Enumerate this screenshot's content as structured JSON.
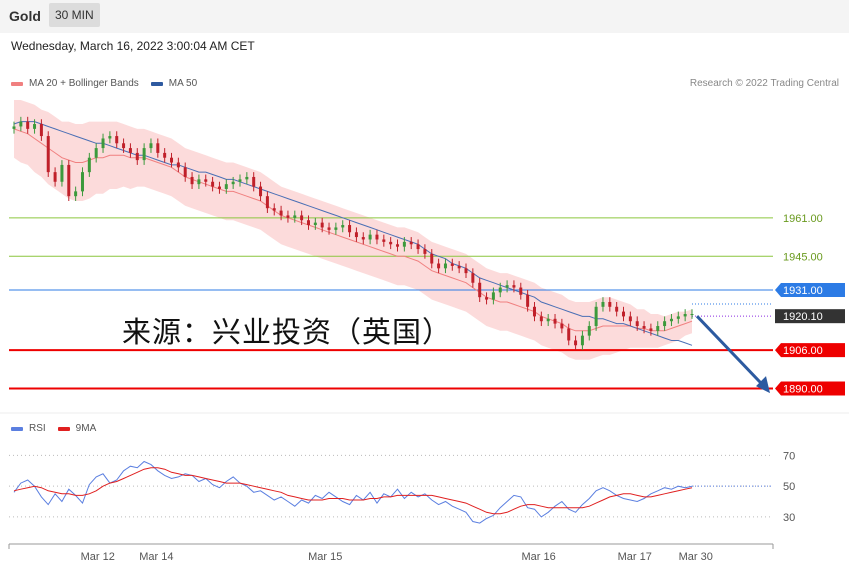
{
  "header": {
    "title": "Gold",
    "timeframe": "30 MIN"
  },
  "subheader": {
    "date": "Wednesday, March 16, 2022 3:00:04 AM CET"
  },
  "legend_main": [
    {
      "label": "MA 20 + Bollinger Bands",
      "color": "#f08080"
    },
    {
      "label": "MA 50",
      "color": "#2e5aa0"
    }
  ],
  "legend_rsi": [
    {
      "label": "RSI",
      "color": "#5b7fe0"
    },
    {
      "label": "9MA",
      "color": "#e02020"
    }
  ],
  "credit": "Research © 2022 Trading Central",
  "watermark": "来源：兴业投资（英国）",
  "chart_data": {
    "type": "candlestick",
    "ylim": [
      1879,
      2010
    ],
    "levels": [
      {
        "value": 1961.0,
        "label": "1961.00",
        "color": "#8cc63f",
        "style": "line-text"
      },
      {
        "value": 1945.0,
        "label": "1945.00",
        "color": "#8cc63f",
        "style": "line-text"
      },
      {
        "value": 1931.0,
        "label": "1931.00",
        "color": "#2c7be5",
        "style": "box"
      },
      {
        "value": 1920.1,
        "label": "1920.10",
        "color": "#333333",
        "style": "box-current"
      },
      {
        "value": 1906.0,
        "label": "1906.00",
        "color": "#ee0000",
        "style": "box"
      },
      {
        "value": 1890.0,
        "label": "1890.00",
        "color": "#ee0000",
        "style": "box"
      }
    ],
    "close": [
      1999,
      2001,
      1998,
      2000,
      1995,
      1980,
      1976,
      1983,
      1970,
      1972,
      1980,
      1986,
      1990,
      1994,
      1995,
      1992,
      1990,
      1988,
      1985,
      1990,
      1992,
      1988,
      1986,
      1984,
      1982,
      1978,
      1975,
      1977,
      1976,
      1974,
      1973,
      1975,
      1976,
      1977,
      1978,
      1974,
      1970,
      1965,
      1964,
      1962,
      1961,
      1962,
      1960,
      1958,
      1959,
      1957,
      1956,
      1957,
      1958,
      1955,
      1953,
      1952,
      1954,
      1952,
      1951,
      1950,
      1949,
      1951,
      1950,
      1948,
      1946,
      1942,
      1940,
      1942,
      1941,
      1940,
      1938,
      1934,
      1928,
      1927,
      1930,
      1932,
      1933,
      1932,
      1929,
      1924,
      1920,
      1918,
      1919,
      1917,
      1915,
      1910,
      1908,
      1912,
      1916,
      1924,
      1926,
      1924,
      1922,
      1920,
      1918,
      1916,
      1915,
      1914,
      1916,
      1918,
      1919,
      1920,
      1921,
      1921
    ],
    "ma20": [
      1998,
      1997,
      1996,
      1994,
      1992,
      1990,
      1988,
      1986,
      1985,
      1984,
      1984,
      1985,
      1986,
      1986,
      1987,
      1987,
      1987,
      1986,
      1986,
      1986,
      1985,
      1984,
      1983,
      1982,
      1980,
      1978,
      1977,
      1976,
      1975,
      1974,
      1973,
      1972,
      1972,
      1971,
      1970,
      1969,
      1968,
      1966,
      1964,
      1962,
      1961,
      1960,
      1959,
      1958,
      1957,
      1956,
      1955,
      1954,
      1953,
      1952,
      1951,
      1950,
      1949,
      1948,
      1947,
      1946,
      1945,
      1945,
      1944,
      1943,
      1941,
      1939,
      1938,
      1937,
      1936,
      1935,
      1934,
      1932,
      1930,
      1928,
      1927,
      1926,
      1926,
      1925,
      1924,
      1923,
      1922,
      1920,
      1919,
      1918,
      1917,
      1915,
      1914,
      1914,
      1914,
      1915,
      1916,
      1916,
      1916,
      1916,
      1916,
      1915,
      1915,
      1914,
      1914,
      1914,
      1915,
      1916,
      1917,
      1918
    ],
    "ma50": [
      2000,
      2001,
      2001,
      2001,
      2000,
      1999,
      1998,
      1997,
      1996,
      1995,
      1994,
      1993,
      1992,
      1992,
      1991,
      1990,
      1989,
      1988,
      1987,
      1987,
      1986,
      1985,
      1984,
      1983,
      1983,
      1982,
      1981,
      1980,
      1980,
      1979,
      1978,
      1977,
      1977,
      1976,
      1975,
      1974,
      1973,
      1972,
      1971,
      1970,
      1969,
      1968,
      1967,
      1966,
      1965,
      1964,
      1963,
      1962,
      1961,
      1960,
      1959,
      1958,
      1957,
      1956,
      1955,
      1954,
      1953,
      1952,
      1951,
      1950,
      1948,
      1946,
      1945,
      1944,
      1942,
      1941,
      1940,
      1938,
      1936,
      1935,
      1934,
      1933,
      1932,
      1931,
      1930,
      1929,
      1928,
      1926,
      1925,
      1924,
      1923,
      1922,
      1921,
      1920,
      1920,
      1919,
      1919,
      1918,
      1917,
      1917,
      1916,
      1915,
      1914,
      1913,
      1912,
      1911,
      1910,
      1910,
      1909,
      1908
    ],
    "bb_upper_offset": [
      12,
      13,
      13,
      14,
      14,
      15,
      15,
      15,
      16,
      16,
      16,
      16,
      15,
      15,
      14,
      14,
      13,
      13,
      12,
      12,
      12,
      12,
      12,
      12,
      12,
      12,
      12,
      12,
      12,
      12,
      12,
      12,
      12,
      12,
      12,
      12,
      12,
      12,
      12,
      12,
      12,
      12,
      12,
      12,
      12,
      12,
      12,
      12,
      12,
      12,
      12,
      12,
      12,
      12,
      12,
      12,
      12,
      12,
      12,
      12,
      12,
      12,
      12,
      12,
      12,
      12,
      12,
      12,
      12,
      12,
      12,
      12,
      12,
      12,
      12,
      12,
      12,
      12,
      12,
      12,
      12,
      12,
      12,
      12,
      12,
      12,
      12,
      12,
      11,
      10,
      9,
      8,
      8,
      7,
      7,
      6,
      6,
      6,
      5,
      5
    ],
    "rsi": {
      "ylim": [
        15,
        80
      ],
      "ticks": [
        70,
        50,
        30
      ],
      "rsi_values": [
        46,
        52,
        54,
        50,
        43,
        38,
        45,
        40,
        48,
        44,
        39,
        51,
        56,
        58,
        52,
        54,
        60,
        63,
        62,
        66,
        64,
        60,
        57,
        55,
        56,
        58,
        57,
        53,
        55,
        51,
        49,
        53,
        56,
        52,
        50,
        46,
        47,
        44,
        41,
        43,
        40,
        37,
        41,
        39,
        44,
        42,
        46,
        43,
        40,
        38,
        44,
        41,
        46,
        39,
        45,
        43,
        48,
        42,
        46,
        43,
        45,
        41,
        38,
        40,
        37,
        35,
        33,
        27,
        26,
        29,
        31,
        36,
        40,
        44,
        43,
        36,
        35,
        30,
        33,
        37,
        40,
        35,
        33,
        38,
        42,
        47,
        49,
        47,
        44,
        42,
        41,
        40,
        42,
        45,
        47,
        49,
        48,
        50,
        49,
        50
      ],
      "ma_values": [
        47,
        48,
        49,
        50,
        49,
        47,
        46,
        45,
        45,
        44,
        44,
        45,
        47,
        50,
        52,
        53,
        55,
        57,
        59,
        61,
        62,
        62,
        61,
        59,
        58,
        57,
        57,
        56,
        55,
        54,
        53,
        52,
        52,
        52,
        51,
        50,
        49,
        48,
        47,
        46,
        44,
        43,
        42,
        41,
        41,
        41,
        42,
        42,
        42,
        41,
        41,
        41,
        42,
        42,
        43,
        43,
        44,
        44,
        44,
        44,
        44,
        44,
        43,
        42,
        41,
        40,
        39,
        37,
        35,
        33,
        32,
        32,
        33,
        35,
        37,
        38,
        38,
        37,
        36,
        36,
        36,
        36,
        36,
        36,
        37,
        39,
        41,
        43,
        44,
        45,
        45,
        44,
        43,
        43,
        44,
        45,
        46,
        47,
        48,
        49
      ]
    },
    "x_ticks": [
      {
        "label": "Mar 12",
        "pos": 0.185
      },
      {
        "label": "Mar 14",
        "pos": 0.31
      },
      {
        "label": "Mar 15",
        "pos": 0.67
      },
      {
        "label": "Mar 16",
        "pos": 1.125
      },
      {
        "label": "Mar 17",
        "pos": 1.33
      },
      {
        "label": "Mar 30",
        "pos": 1.46
      }
    ]
  }
}
